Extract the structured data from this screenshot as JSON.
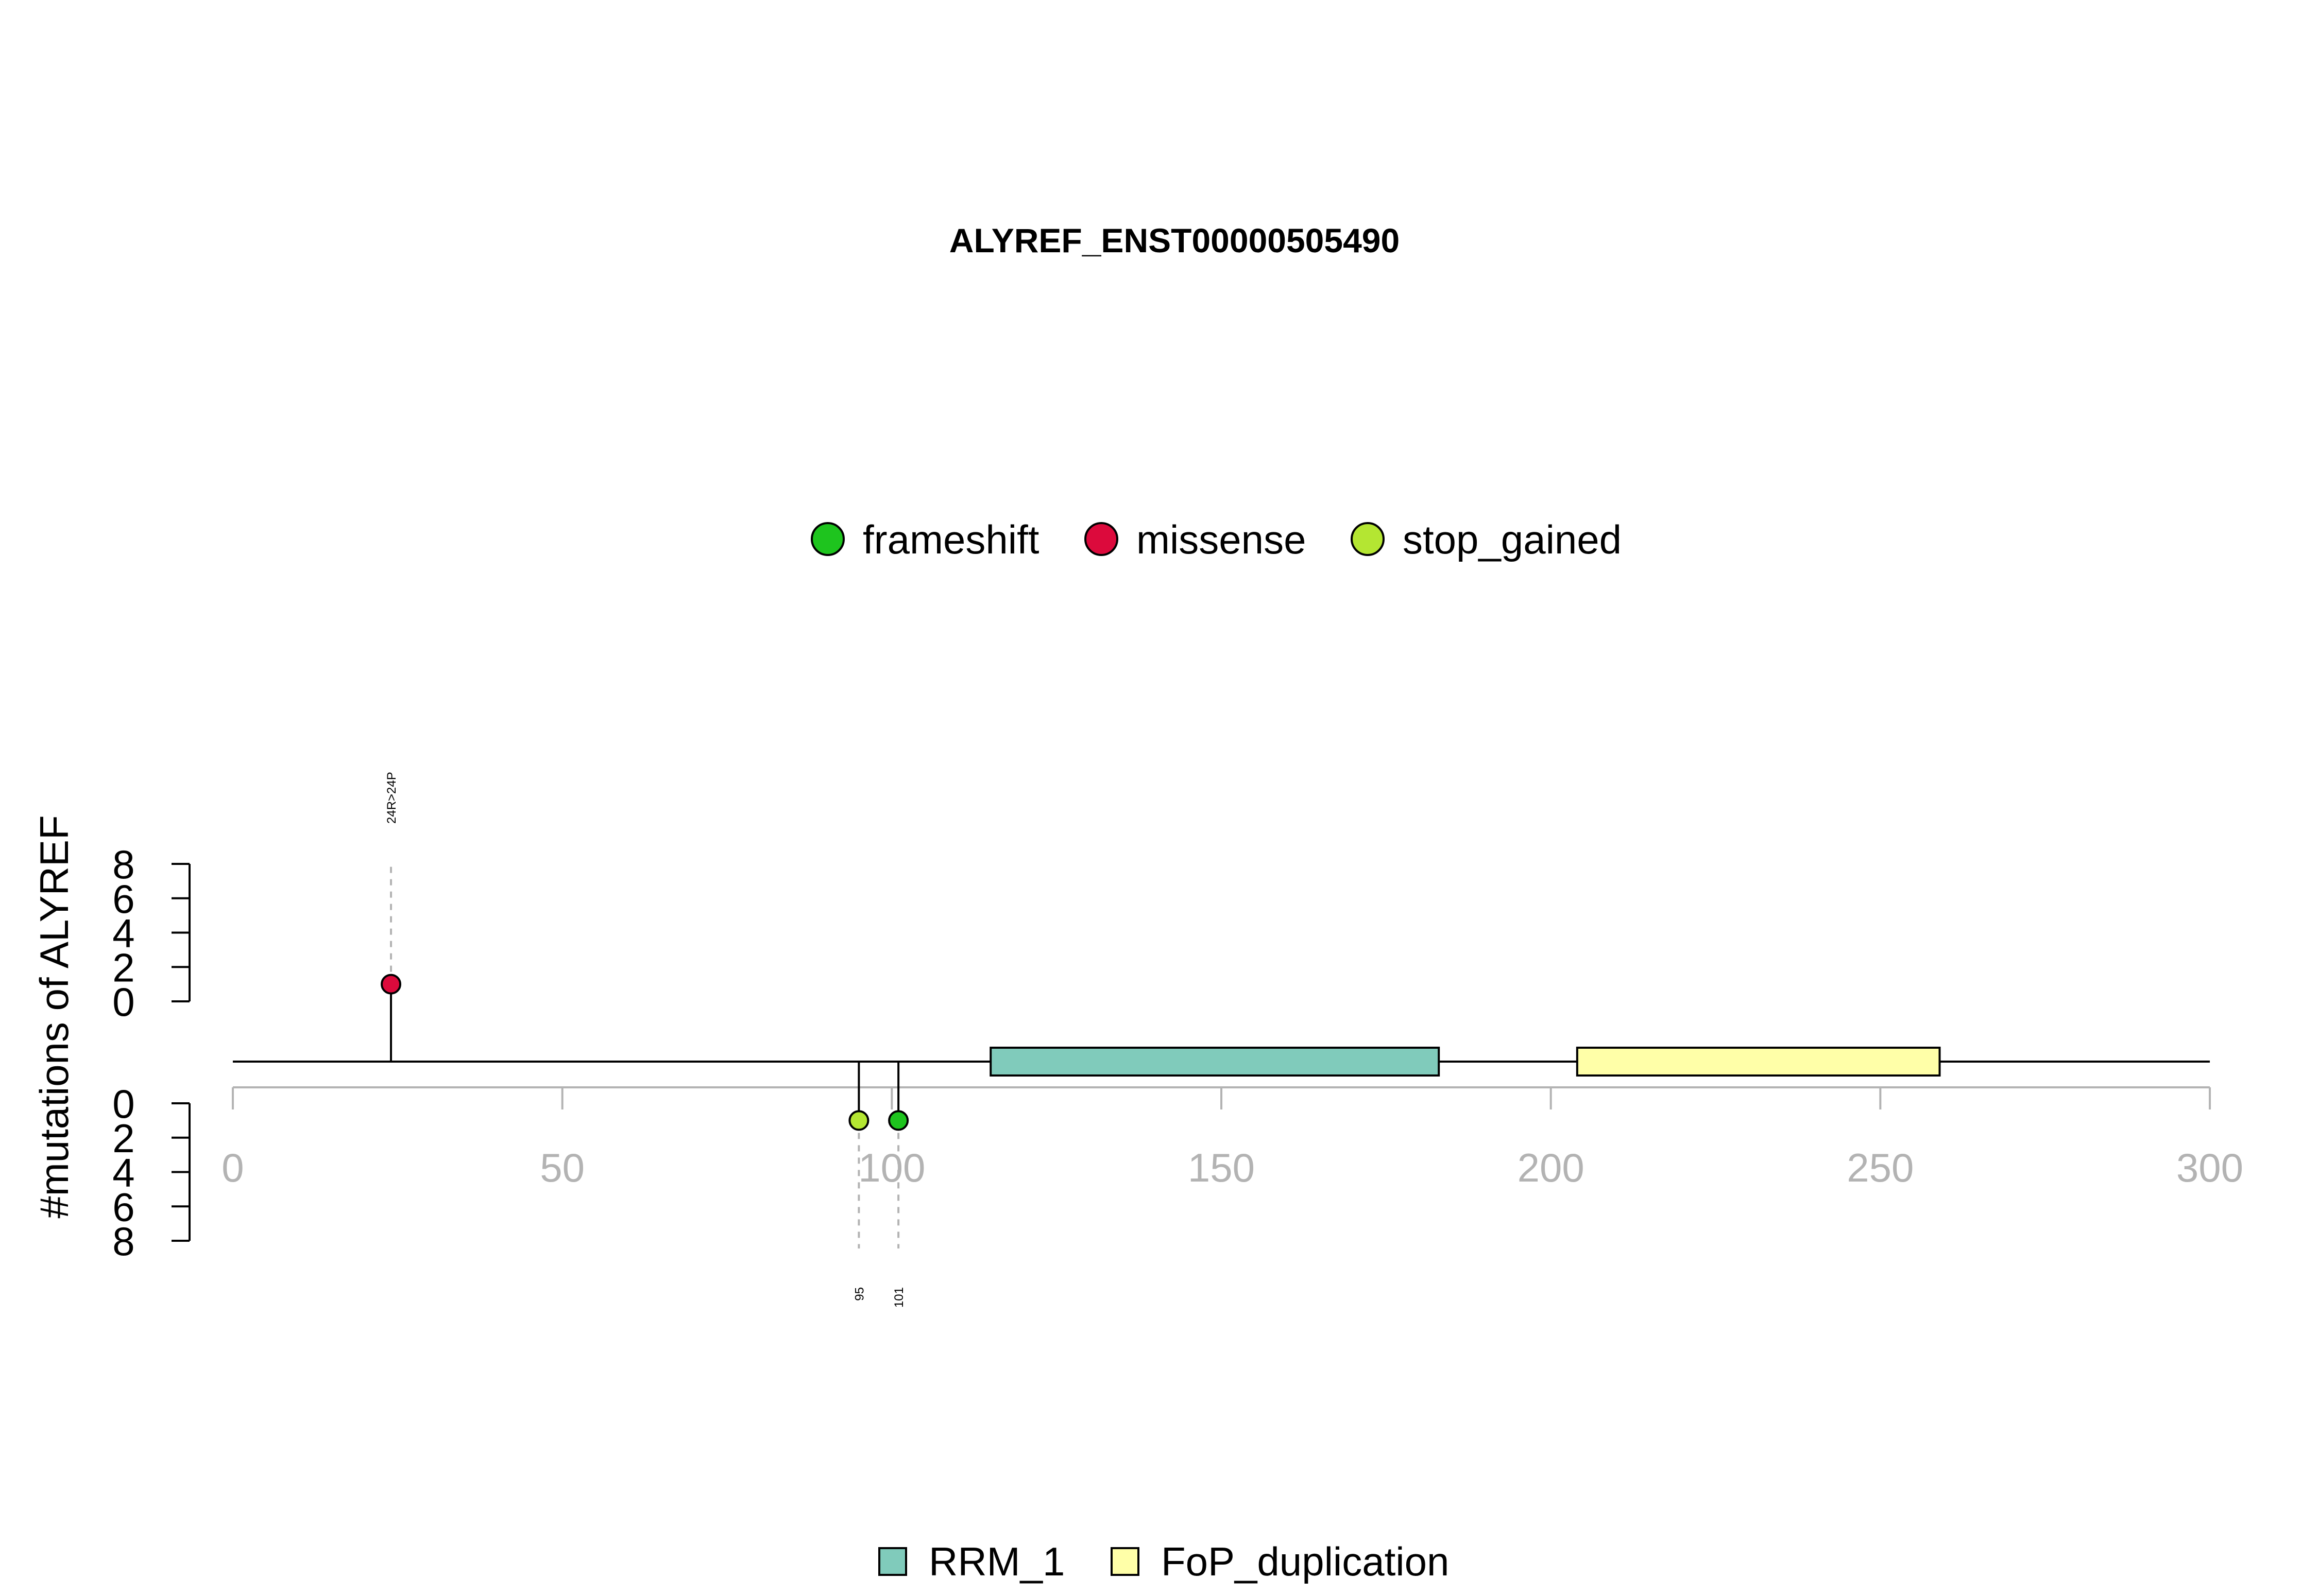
{
  "chart_data": {
    "type": "lollipop",
    "title": "ALYREF_ENST00000505490",
    "ylabel": "#mutations of ALYREF",
    "xlim": [
      0,
      300
    ],
    "x_ticks": [
      0,
      50,
      100,
      150,
      200,
      250,
      300
    ],
    "count_ticks": [
      0,
      2,
      4,
      6,
      8
    ],
    "count_lim": [
      0,
      8
    ],
    "mutation_legend": [
      {
        "name": "frameshift",
        "color": "#1ec41e"
      },
      {
        "name": "missense",
        "color": "#dc0a3c"
      },
      {
        "name": "stop_gained",
        "color": "#b4e632"
      }
    ],
    "domain_legend": [
      {
        "name": "RRM_1",
        "color": "#80cbbb"
      },
      {
        "name": "FoP_duplication",
        "color": "#ffffa8"
      }
    ],
    "domains": [
      {
        "name": "RRM_1",
        "start": 115,
        "end": 183,
        "color": "#80cbbb"
      },
      {
        "name": "FoP_duplication",
        "start": 204,
        "end": 259,
        "color": "#ffffa8"
      }
    ],
    "mutations": [
      {
        "position": 24,
        "label": "24R>24P",
        "type": "missense",
        "count": 1,
        "side": "top",
        "color": "#dc0a3c"
      },
      {
        "position": 95,
        "label": "95",
        "type": "stop_gained",
        "count": 1,
        "side": "bottom",
        "color": "#b4e632"
      },
      {
        "position": 101,
        "label": "101",
        "type": "frameshift",
        "count": 1,
        "side": "bottom",
        "color": "#1ec41e"
      }
    ]
  }
}
